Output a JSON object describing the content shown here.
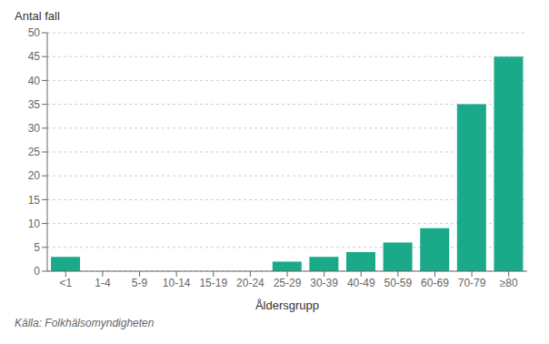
{
  "chart_data": {
    "type": "bar",
    "categories": [
      "<1",
      "1-4",
      "5-9",
      "10-14",
      "15-19",
      "20-24",
      "25-29",
      "30-39",
      "40-49",
      "50-59",
      "60-69",
      "70-79",
      "≥80"
    ],
    "values": [
      3,
      0,
      0,
      0,
      0,
      0,
      2,
      3,
      4,
      6,
      9,
      35,
      45
    ],
    "color": "#1aaa8a",
    "xlabel": "Åldersgrupp",
    "ylabel": "Antal fall",
    "ylim": [
      0,
      50
    ],
    "yticks": [
      0,
      5,
      10,
      15,
      20,
      25,
      30,
      35,
      40,
      45,
      50
    ],
    "grid": true,
    "annotations": [
      "Källa: Folkhälsomyndigheten"
    ]
  }
}
